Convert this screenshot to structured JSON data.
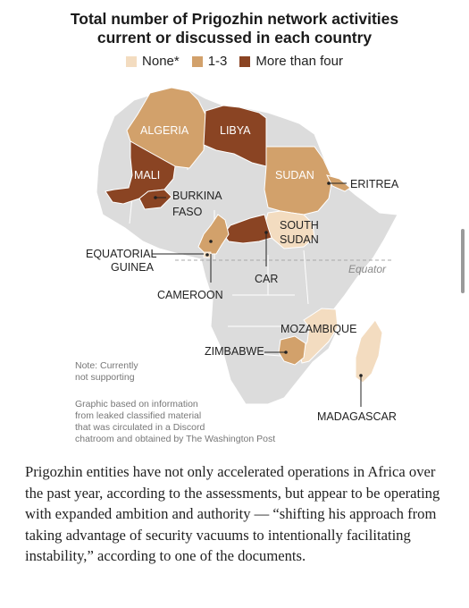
{
  "title_line1": "Total number of Prigozhin network activities",
  "title_line2": "current or discussed in each country",
  "legend": [
    {
      "label": "None*",
      "color": "#f3dcc0"
    },
    {
      "label": "1-3",
      "color": "#d2a16b"
    },
    {
      "label": "More than four",
      "color": "#8a4423"
    }
  ],
  "colors": {
    "base": "#dcdcdc",
    "none": "#f3dcc0",
    "mid": "#d2a16b",
    "high": "#8a4423"
  },
  "countries": {
    "algeria": "ALGERIA",
    "libya": "LIBYA",
    "mali": "MALI",
    "sudan": "SUDAN",
    "eritrea": "ERITREA",
    "burkina_1": "BURKINA",
    "burkina_2": "FASO",
    "south_sudan_1": "SOUTH",
    "south_sudan_2": "SUDAN",
    "eq_guinea_1": "EQUATORIAL",
    "eq_guinea_2": "GUINEA",
    "car": "CAR",
    "cameroon": "CAMEROON",
    "mozambique": "MOZAMBIQUE",
    "zimbabwe": "ZIMBABWE",
    "madagascar": "MADAGASCAR"
  },
  "equator_label": "Equator",
  "note_line1": "Note: Currently",
  "note_line2": "not supporting",
  "source_line1": "Graphic based on information",
  "source_line2": "from leaked classified material",
  "source_line3": "that was circulated in a Discord",
  "source_line4": "chatroom and obtained by The Washington Post",
  "article_text": "Prigozhin entities have not only accelerated operations in Africa over the past year, according to the assessments, but appear to be operating with expanded ambition and authority — “shifting his approach from taking advantage of security vacuums to intentionally facilitating instability,” according to one of the documents."
}
